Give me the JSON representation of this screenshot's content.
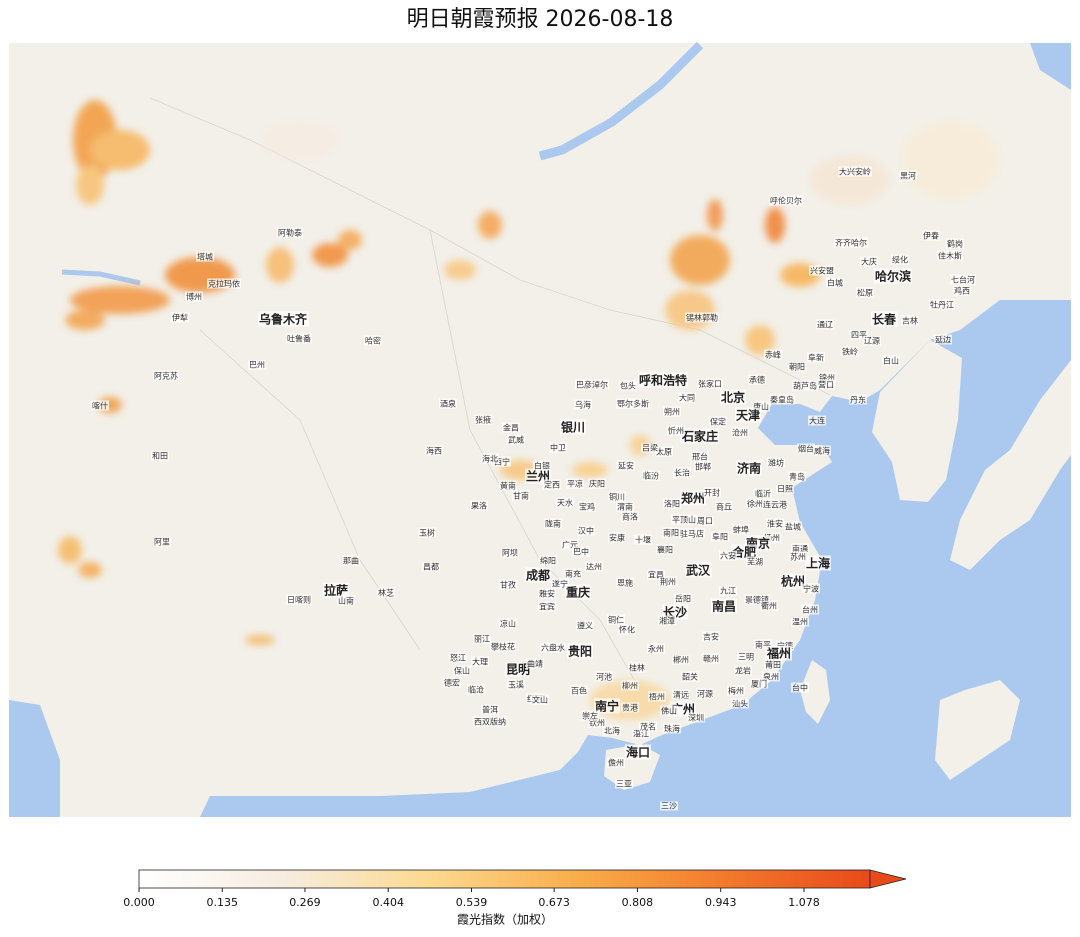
{
  "map": {
    "title": "明日朝霞预报  2026-08-18",
    "places": [
      "大兴安岭",
      "黑河",
      "呼伦贝尔",
      "齐齐哈尔",
      "伊春",
      "鹤岗",
      "佳木斯",
      "大庆",
      "绥化",
      "哈尔滨",
      "七台河",
      "鸡西",
      "兴安盟",
      "白城",
      "松原",
      "牡丹江",
      "通辽",
      "长春",
      "吉林",
      "四平",
      "辽源",
      "延边",
      "铁岭",
      "白山",
      "赤峰",
      "阜新",
      "朝阳",
      "锦州",
      "葫芦岛",
      "营口",
      "承德",
      "丹东",
      "秦皇岛",
      "唐山",
      "北京",
      "天津",
      "大连",
      "张家口",
      "呼和浩特",
      "包头",
      "巴彦淖尔",
      "锡林郭勒",
      "大同",
      "鄂尔多斯",
      "朔州",
      "乌海",
      "保定",
      "沧州",
      "石家庄",
      "银川",
      "忻州",
      "太原",
      "烟台",
      "威海",
      "潍坊",
      "济南",
      "青岛",
      "吕梁",
      "中卫",
      "邢台",
      "邯郸",
      "兰州",
      "白银",
      "西宁",
      "定西",
      "平凉",
      "庆阳",
      "延安",
      "临汾",
      "长治",
      "天水",
      "宝鸡",
      "铜川",
      "渭南",
      "郑州",
      "开封",
      "徐州",
      "连云港",
      "日照",
      "临沂",
      "商丘",
      "淮安",
      "盐城",
      "洛阳",
      "商洛",
      "平顶山",
      "周口",
      "南阳",
      "驻马店",
      "阜阳",
      "蚌埠",
      "扬州",
      "南京",
      "南通",
      "合肥",
      "六安",
      "芜湖",
      "上海",
      "苏州",
      "杭州",
      "宁波",
      "台州",
      "温州",
      "武汉",
      "襄阳",
      "十堰",
      "安康",
      "汉中",
      "陇南",
      "广元",
      "巴中",
      "达州",
      "南充",
      "绵阳",
      "成都",
      "遂宁",
      "重庆",
      "宜昌",
      "荆州",
      "恩施",
      "岳阳",
      "九江",
      "南昌",
      "景德镇",
      "衢州",
      "长沙",
      "湘潭",
      "怀化",
      "吉安",
      "贵阳",
      "遵义",
      "铜仁",
      "六盘水",
      "昆明",
      "曲靖",
      "大理",
      "丽江",
      "攀枝花",
      "凉山",
      "保山",
      "德宏",
      "玉溪",
      "红河",
      "文山",
      "普洱",
      "西双版纳",
      "临沧",
      "怒江",
      "永州",
      "郴州",
      "赣州",
      "龙岩",
      "三明",
      "南平",
      "宁德",
      "福州",
      "莆田",
      "泉州",
      "厦门",
      "台中",
      "桂林",
      "柳州",
      "河池",
      "百色",
      "南宁",
      "贵港",
      "梧州",
      "清远",
      "韶关",
      "河源",
      "梅州",
      "广州",
      "汕头",
      "佛山",
      "深圳",
      "珠海",
      "湛江",
      "茂名",
      "北海",
      "钦州",
      "崇左",
      "海口",
      "儋州",
      "三亚",
      "三沙",
      "拉萨",
      "日喀则",
      "山南",
      "林芝",
      "那曲",
      "昌都",
      "阿里",
      "和田",
      "喀什",
      "阿克苏",
      "克拉玛依",
      "塔城",
      "阿勒泰",
      "博州",
      "伊犁",
      "乌鲁木齐",
      "吐鲁番",
      "哈密",
      "巴州",
      "酒泉",
      "张掖",
      "金昌",
      "武威",
      "海西",
      "海北",
      "黄南",
      "甘南",
      "果洛",
      "玉树",
      "阿坝",
      "甘孜",
      "雅安",
      "宜宾"
    ],
    "colorbar": {
      "type": "colorbar",
      "label": "霞光指数（加权）",
      "lim": [
        0,
        1.185
      ],
      "ticks": [
        {
          "value": 0,
          "label": "0.000"
        },
        0.135,
        0.269,
        0.404,
        0.539,
        0.673,
        0.808,
        0.943,
        1.078
      ],
      "colors": [
        "#ffffff",
        "#f6ecdf",
        "#fbd98e",
        "#f9ad4a",
        "#f27a2c",
        "#e84a1a"
      ]
    }
  }
}
